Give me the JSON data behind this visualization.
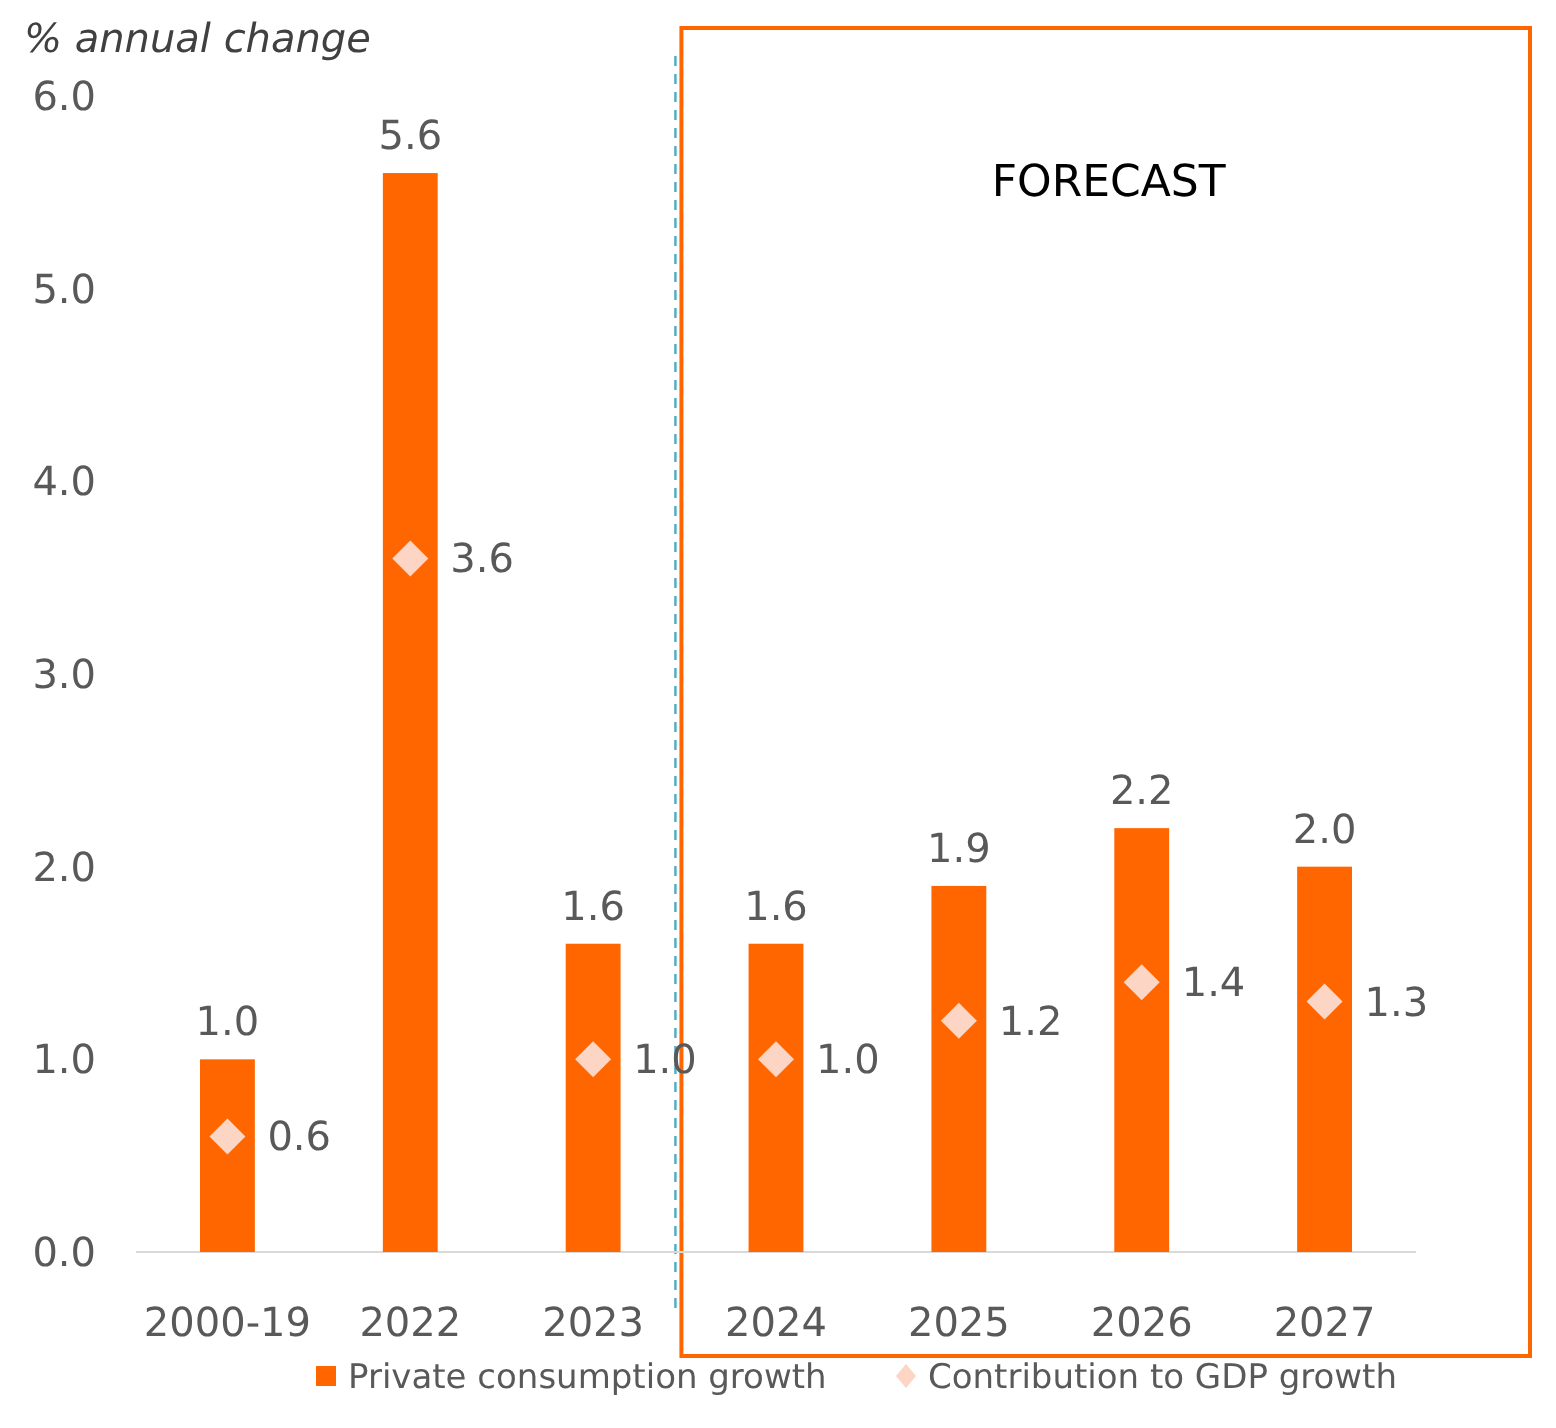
{
  "chart_data": {
    "type": "bar",
    "ylabel": "% annual change",
    "categories": [
      "2000-19",
      "2022",
      "2023",
      "2024",
      "2025",
      "2026",
      "2027"
    ],
    "series": [
      {
        "name": "Private consumption growth",
        "color": "#ff6600",
        "values": [
          1.0,
          5.6,
          1.6,
          1.6,
          1.9,
          2.2,
          2.0
        ],
        "value_labels": [
          "1.0",
          "5.6",
          "1.6",
          "1.6",
          "1.9",
          "2.2",
          "2.0"
        ]
      },
      {
        "name": "Contribution to GDP growth",
        "type": "scatter",
        "color": "#fcd5c5",
        "marker": "diamond",
        "values": [
          0.6,
          3.6,
          1.0,
          1.0,
          1.2,
          1.4,
          1.3
        ],
        "value_labels": [
          "0.6",
          "3.6",
          "1.0",
          "1.0",
          "1.2",
          "1.4",
          "1.3"
        ]
      }
    ],
    "annotations": [
      "FORECAST"
    ],
    "ylim": [
      0,
      6
    ],
    "yticks": [
      {
        "value": 0,
        "label": "0.0"
      },
      {
        "value": 1,
        "label": "1.0"
      },
      {
        "value": 2,
        "label": "2.0"
      },
      {
        "value": 3,
        "label": "3.0"
      },
      {
        "value": 4,
        "label": "4.0"
      },
      {
        "value": 5,
        "label": "5.0"
      },
      {
        "value": 6,
        "label": "6.0"
      }
    ],
    "ref_lines": [
      {
        "axis": "x",
        "value": "2024",
        "color": "#4bacc6",
        "line_style": "dashed"
      }
    ],
    "legend": "bottom",
    "grid": false
  }
}
